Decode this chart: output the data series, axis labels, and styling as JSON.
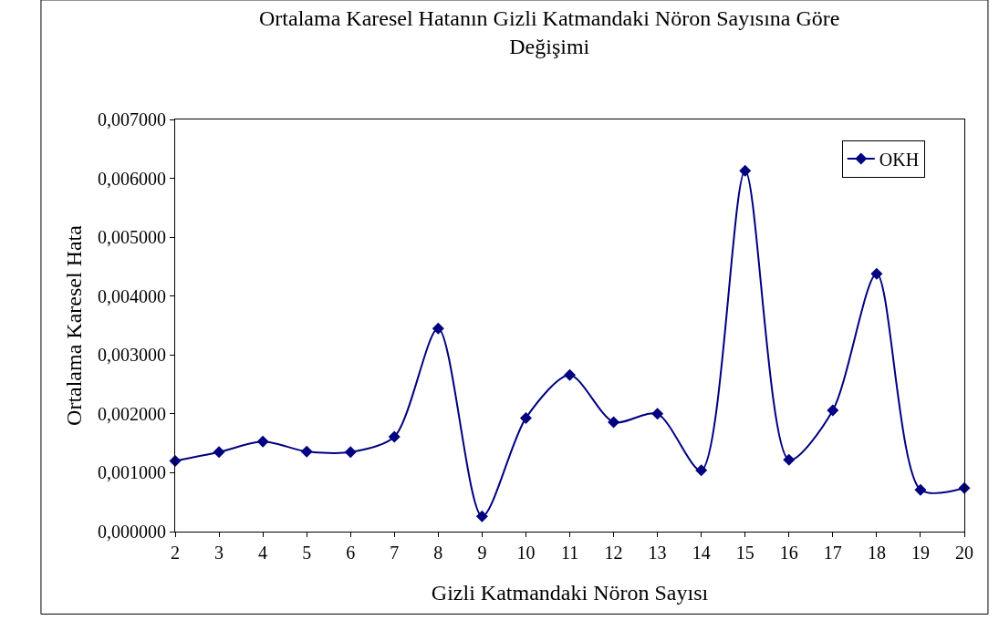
{
  "chart_data": {
    "type": "line",
    "title": "Ortalama Karesel Hatanın Gizli Katmandaki Nöron Sayısına Göre Değişimi",
    "xlabel": "Gizli Katmandaki Nöron Sayısı",
    "ylabel": "Ortalama Karesel Hata",
    "categories": [
      "2",
      "3",
      "4",
      "5",
      "6",
      "7",
      "8",
      "9",
      "10",
      "11",
      "12",
      "13",
      "14",
      "15",
      "16",
      "17",
      "18",
      "19",
      "20"
    ],
    "series": [
      {
        "name": "OKH",
        "color": "#000080",
        "values": [
          0.0012,
          0.00135,
          0.00153,
          0.00136,
          0.00135,
          0.00161,
          0.00345,
          0.00026,
          0.00193,
          0.00266,
          0.00186,
          0.002,
          0.00104,
          0.00613,
          0.00122,
          0.00206,
          0.00438,
          0.00071,
          0.00074
        ]
      }
    ],
    "ylim": [
      0,
      0.007
    ],
    "yticks": [
      {
        "value": 0,
        "label": "0,000000"
      },
      {
        "value": 0.001,
        "label": "0,001000"
      },
      {
        "value": 0.002,
        "label": "0,002000"
      },
      {
        "value": 0.003,
        "label": "0,003000"
      },
      {
        "value": 0.004,
        "label": "0,004000"
      },
      {
        "value": 0.005,
        "label": "0,005000"
      },
      {
        "value": 0.006,
        "label": "0,006000"
      },
      {
        "value": 0.007,
        "label": "0,007000"
      }
    ],
    "grid": false,
    "legend": "top right",
    "marker": "diamond",
    "line_style": "solid"
  }
}
